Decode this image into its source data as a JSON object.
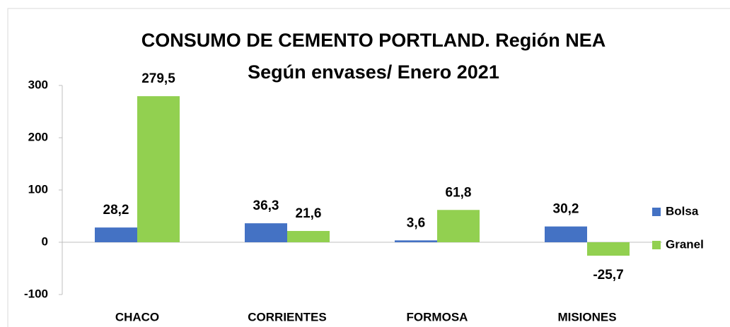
{
  "chart_data": {
    "type": "bar",
    "title": "CONSUMO DE CEMENTO PORTLAND. Región NEA",
    "subtitle": "Según envases/ Enero 2021",
    "categories": [
      "CHACO",
      "CORRIENTES",
      "FORMOSA",
      "MISIONES"
    ],
    "series": [
      {
        "name": "Bolsa",
        "color": "#4472c4",
        "values": [
          28.2,
          36.3,
          3.6,
          30.2
        ],
        "value_labels": [
          "28,2",
          "36,3",
          "3,6",
          "30,2"
        ]
      },
      {
        "name": "Granel",
        "color": "#92d050",
        "values": [
          279.5,
          21.6,
          61.8,
          -25.7
        ],
        "value_labels": [
          "279,5",
          "21,6",
          "61,8",
          "-25,7"
        ]
      }
    ],
    "ylim": [
      -100,
      300
    ],
    "yticks": [
      -100,
      0,
      100,
      200,
      300
    ],
    "legend": "right"
  }
}
